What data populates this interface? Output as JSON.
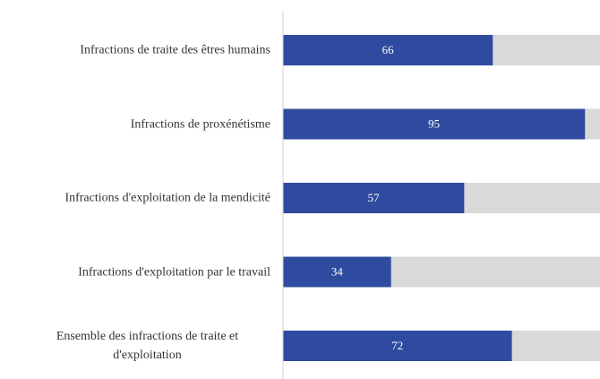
{
  "chart_data": {
    "type": "bar",
    "orientation": "horizontal",
    "categories": [
      "Infractions de traite des êtres humains",
      "Infractions de proxénétisme",
      "Infractions d'exploitation de la mendicité",
      "Infractions d'exploitation par le travail",
      "Ensemble des infractions de traite et d'exploitation"
    ],
    "values": [
      66,
      95,
      57,
      34,
      72
    ],
    "color": "#2f4b9f",
    "track_color": "#d9d9d9",
    "xlim": [
      0,
      100
    ]
  }
}
